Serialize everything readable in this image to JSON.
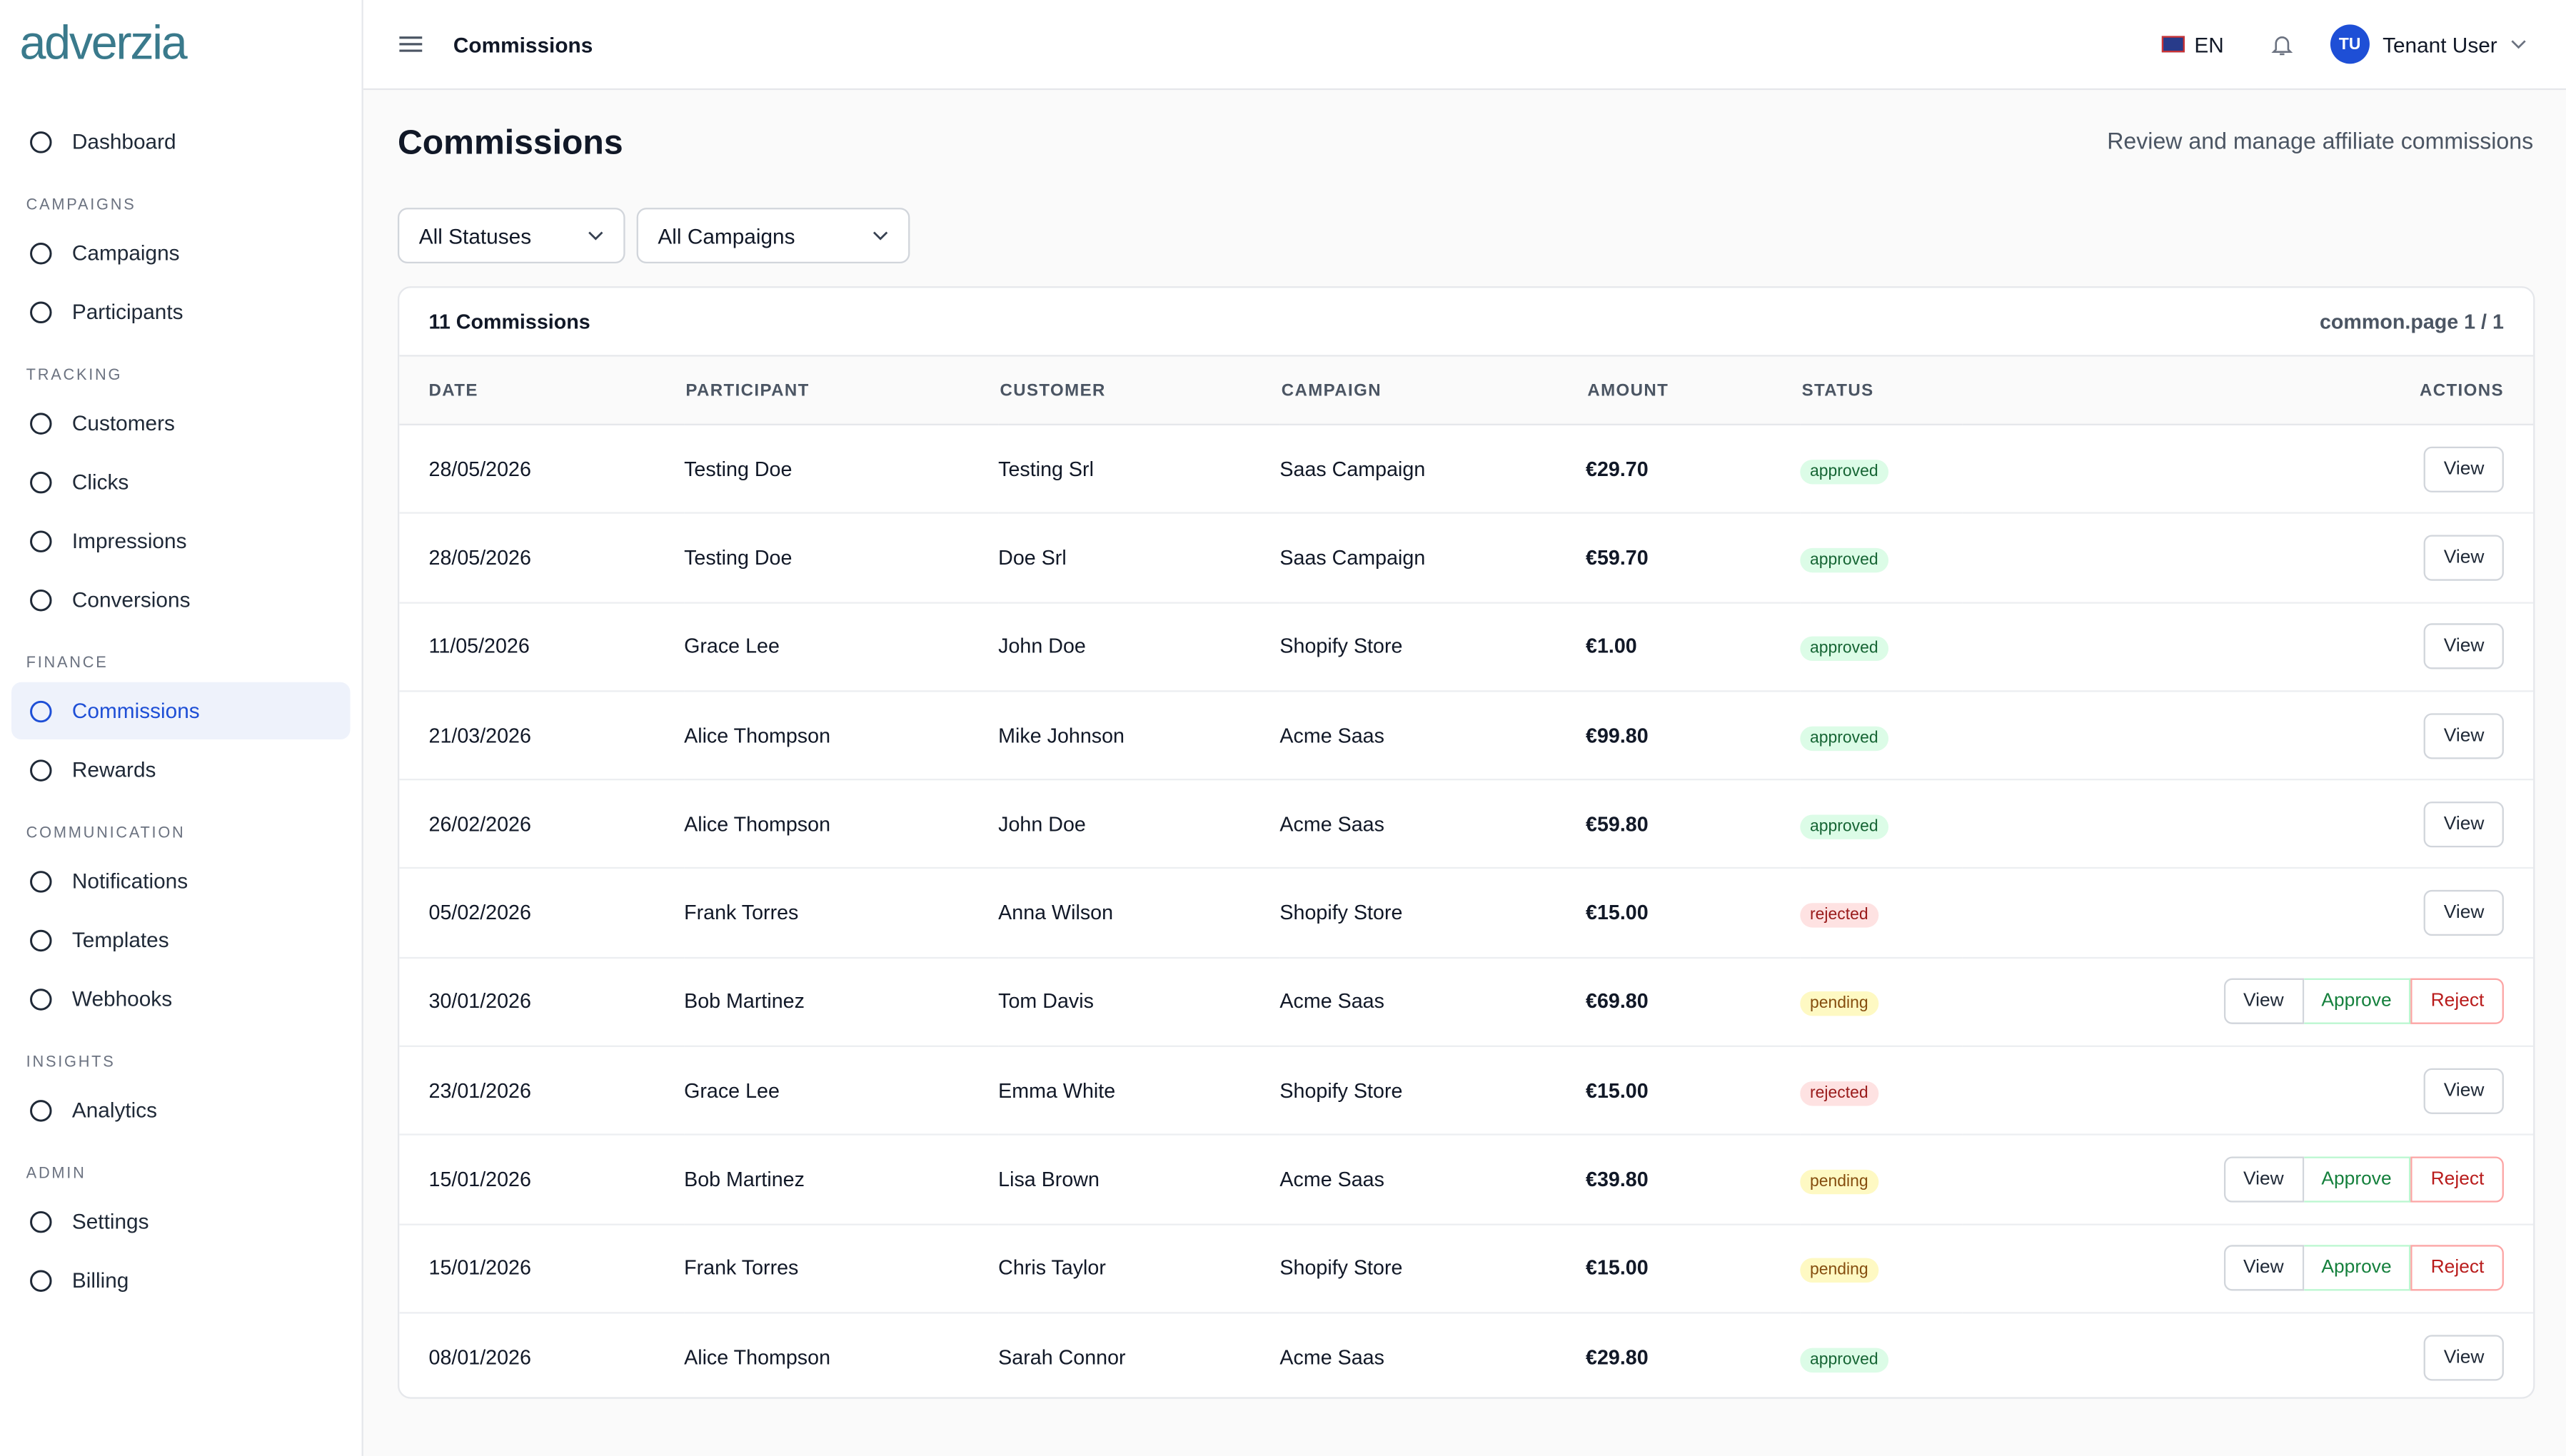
{
  "brand": "adverzia",
  "nav": [
    {
      "items": [
        {
          "label": "Dashboard"
        }
      ]
    },
    {
      "heading": "CAMPAIGNS",
      "items": [
        {
          "label": "Campaigns"
        },
        {
          "label": "Participants"
        }
      ]
    },
    {
      "heading": "TRACKING",
      "items": [
        {
          "label": "Customers"
        },
        {
          "label": "Clicks"
        },
        {
          "label": "Impressions"
        },
        {
          "label": "Conversions"
        }
      ]
    },
    {
      "heading": "FINANCE",
      "items": [
        {
          "label": "Commissions",
          "active": true
        },
        {
          "label": "Rewards"
        }
      ]
    },
    {
      "heading": "COMMUNICATION",
      "items": [
        {
          "label": "Notifications"
        },
        {
          "label": "Templates"
        },
        {
          "label": "Webhooks"
        }
      ]
    },
    {
      "heading": "INSIGHTS",
      "items": [
        {
          "label": "Analytics"
        }
      ]
    },
    {
      "heading": "ADMIN",
      "items": [
        {
          "label": "Settings"
        },
        {
          "label": "Billing"
        }
      ]
    }
  ],
  "topbar": {
    "title": "Commissions",
    "language": "EN",
    "avatar": "TU",
    "user": "Tenant User"
  },
  "header": {
    "title": "Commissions",
    "subtitle": "Review and manage affiliate commissions"
  },
  "filters": [
    "All Statuses",
    "All Campaigns"
  ],
  "table": {
    "count": "11 Commissions",
    "page": "common.page 1 / 1",
    "columns": [
      "DATE",
      "PARTICIPANT",
      "CUSTOMER",
      "CAMPAIGN",
      "AMOUNT",
      "STATUS",
      "ACTIONS"
    ],
    "rows": [
      {
        "date": "28/05/2026",
        "participant": "Testing Doe",
        "customer": "Testing Srl",
        "campaign": "Saas Campaign",
        "amount": "€29.70",
        "status": "approved",
        "actions": [
          "View"
        ]
      },
      {
        "date": "28/05/2026",
        "participant": "Testing Doe",
        "customer": "Doe Srl",
        "campaign": "Saas Campaign",
        "amount": "€59.70",
        "status": "approved",
        "actions": [
          "View"
        ]
      },
      {
        "date": "11/05/2026",
        "participant": "Grace Lee",
        "customer": "John Doe",
        "campaign": "Shopify Store",
        "amount": "€1.00",
        "status": "approved",
        "actions": [
          "View"
        ]
      },
      {
        "date": "21/03/2026",
        "participant": "Alice Thompson",
        "customer": "Mike Johnson",
        "campaign": "Acme Saas",
        "amount": "€99.80",
        "status": "approved",
        "actions": [
          "View"
        ]
      },
      {
        "date": "26/02/2026",
        "participant": "Alice Thompson",
        "customer": "John Doe",
        "campaign": "Acme Saas",
        "amount": "€59.80",
        "status": "approved",
        "actions": [
          "View"
        ]
      },
      {
        "date": "05/02/2026",
        "participant": "Frank Torres",
        "customer": "Anna Wilson",
        "campaign": "Shopify Store",
        "amount": "€15.00",
        "status": "rejected",
        "actions": [
          "View"
        ]
      },
      {
        "date": "30/01/2026",
        "participant": "Bob Martinez",
        "customer": "Tom Davis",
        "campaign": "Acme Saas",
        "amount": "€69.80",
        "status": "pending",
        "actions": [
          "View",
          "Approve",
          "Reject"
        ]
      },
      {
        "date": "23/01/2026",
        "participant": "Grace Lee",
        "customer": "Emma White",
        "campaign": "Shopify Store",
        "amount": "€15.00",
        "status": "rejected",
        "actions": [
          "View"
        ]
      },
      {
        "date": "15/01/2026",
        "participant": "Bob Martinez",
        "customer": "Lisa Brown",
        "campaign": "Acme Saas",
        "amount": "€39.80",
        "status": "pending",
        "actions": [
          "View",
          "Approve",
          "Reject"
        ]
      },
      {
        "date": "15/01/2026",
        "participant": "Frank Torres",
        "customer": "Chris Taylor",
        "campaign": "Shopify Store",
        "amount": "€15.00",
        "status": "pending",
        "actions": [
          "View",
          "Approve",
          "Reject"
        ]
      },
      {
        "date": "08/01/2026",
        "participant": "Alice Thompson",
        "customer": "Sarah Connor",
        "campaign": "Acme Saas",
        "amount": "€29.80",
        "status": "approved",
        "actions": [
          "View"
        ]
      }
    ]
  }
}
